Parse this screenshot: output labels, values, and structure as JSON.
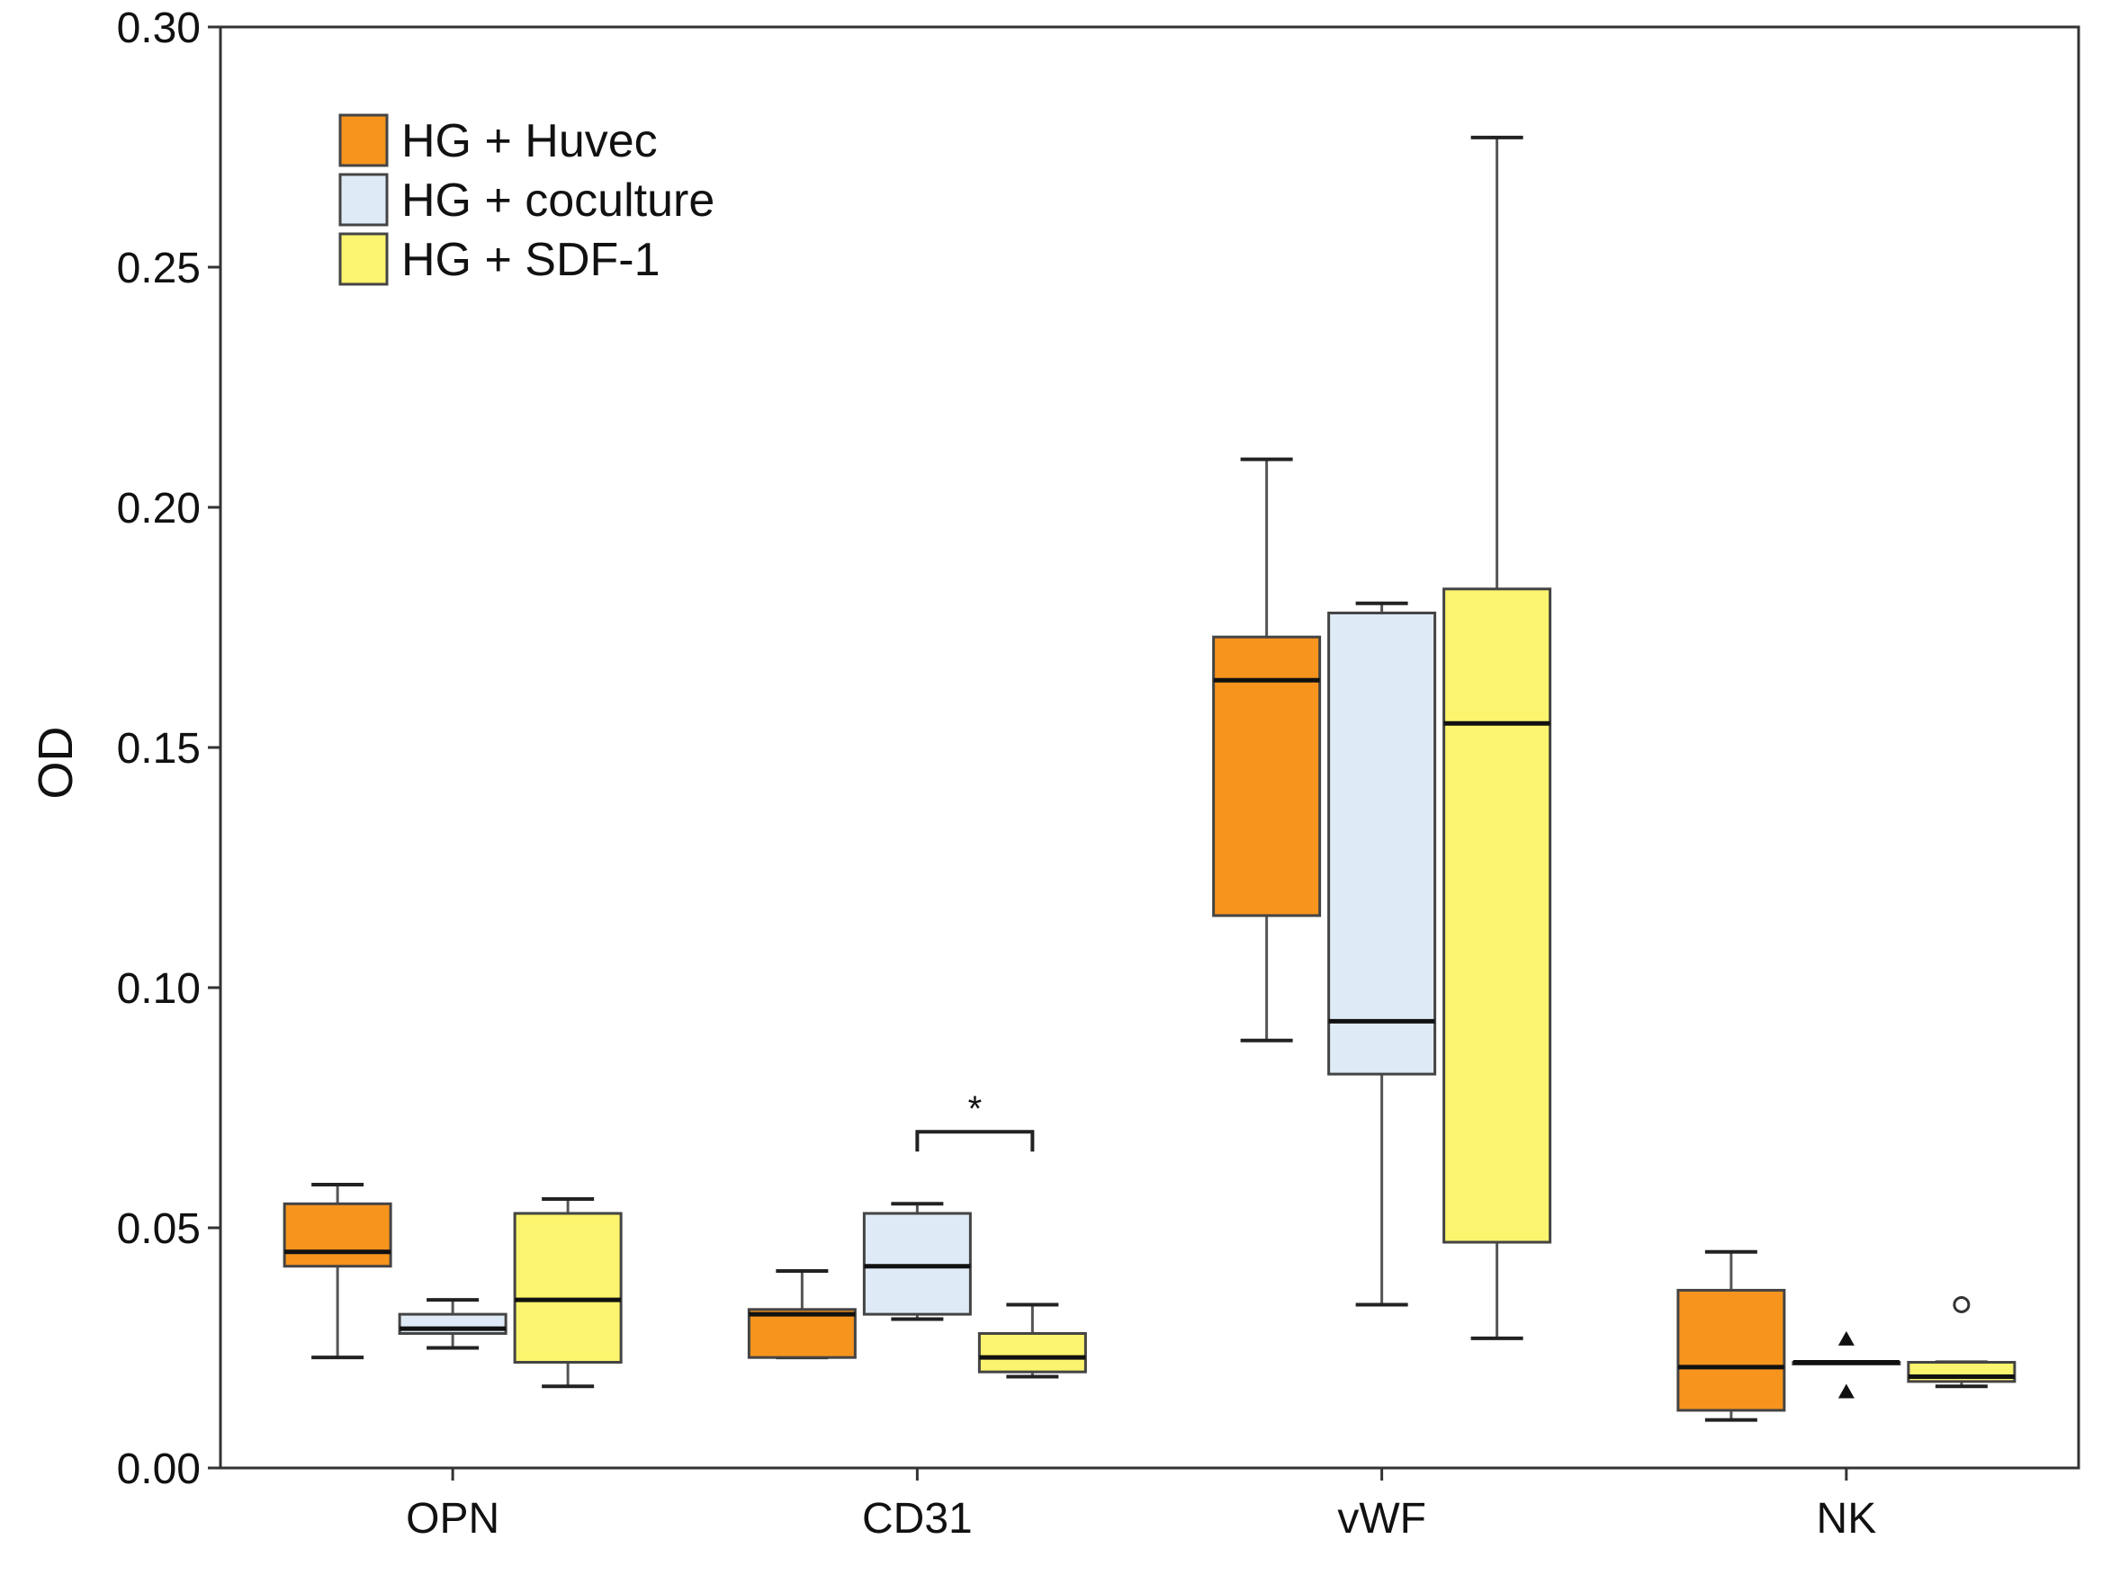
{
  "chart_data": {
    "type": "box",
    "title": "",
    "xlabel": "",
    "ylabel": "OD",
    "ylim": [
      0.0,
      0.3
    ],
    "yticks": [
      "0.00",
      "0.05",
      "0.10",
      "0.15",
      "0.20",
      "0.25",
      "0.30"
    ],
    "ytick_values": [
      0.0,
      0.05,
      0.1,
      0.15,
      0.2,
      0.25,
      0.3
    ],
    "categories": [
      "OPN",
      "CD31",
      "vWF",
      "NK"
    ],
    "legend_position": "top-left",
    "series": [
      {
        "name": "HG + Huvec",
        "color": "#f7941d",
        "boxes": [
          {
            "whisker_low": 0.023,
            "q1": 0.042,
            "median": 0.045,
            "q3": 0.055,
            "whisker_high": 0.059
          },
          {
            "whisker_low": 0.023,
            "q1": 0.023,
            "median": 0.032,
            "q3": 0.033,
            "whisker_high": 0.041
          },
          {
            "whisker_low": 0.089,
            "q1": 0.115,
            "median": 0.164,
            "q3": 0.173,
            "whisker_high": 0.21
          },
          {
            "whisker_low": 0.01,
            "q1": 0.012,
            "median": 0.021,
            "q3": 0.037,
            "whisker_high": 0.045
          }
        ]
      },
      {
        "name": "HG + coculture",
        "color": "#deebf7",
        "boxes": [
          {
            "whisker_low": 0.025,
            "q1": 0.028,
            "median": 0.029,
            "q3": 0.032,
            "whisker_high": 0.035
          },
          {
            "whisker_low": 0.031,
            "q1": 0.032,
            "median": 0.042,
            "q3": 0.053,
            "whisker_high": 0.055
          },
          {
            "whisker_low": 0.034,
            "q1": 0.082,
            "median": 0.093,
            "q3": 0.178,
            "whisker_high": 0.18
          },
          {
            "whisker_low": 0.022,
            "q1": 0.022,
            "median": 0.022,
            "q3": 0.022,
            "whisker_high": 0.022,
            "extremes": [
              0.027,
              0.016
            ]
          }
        ]
      },
      {
        "name": "HG + SDF-1",
        "color": "#fbf46e",
        "boxes": [
          {
            "whisker_low": 0.017,
            "q1": 0.022,
            "median": 0.035,
            "q3": 0.053,
            "whisker_high": 0.056
          },
          {
            "whisker_low": 0.019,
            "q1": 0.02,
            "median": 0.023,
            "q3": 0.028,
            "whisker_high": 0.034
          },
          {
            "whisker_low": 0.027,
            "q1": 0.047,
            "median": 0.155,
            "q3": 0.183,
            "whisker_high": 0.277
          },
          {
            "whisker_low": 0.017,
            "q1": 0.018,
            "median": 0.019,
            "q3": 0.022,
            "whisker_high": 0.022,
            "outliers": [
              0.034
            ]
          }
        ]
      }
    ],
    "annotations": [
      {
        "text": "*",
        "category": "CD31",
        "from_series": 1,
        "to_series": 2,
        "y": 0.07
      }
    ]
  }
}
